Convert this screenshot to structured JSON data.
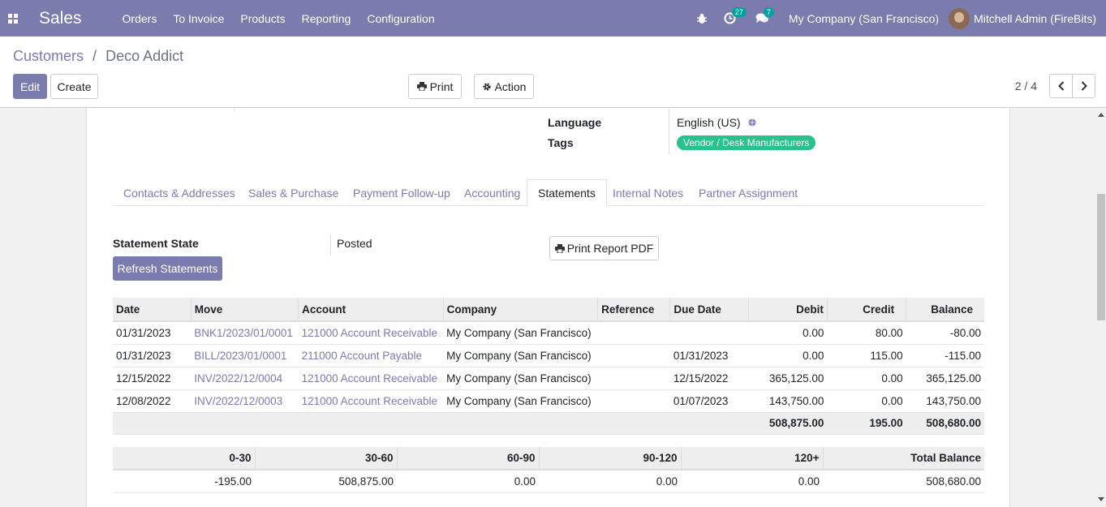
{
  "app": {
    "name": "Sales"
  },
  "nav": {
    "menu": [
      "Orders",
      "To Invoice",
      "Products",
      "Reporting",
      "Configuration"
    ],
    "activity_count": "27",
    "message_count": "7",
    "company": "My Company (San Francisco)",
    "user": "Mitchell Admin (FireBits)"
  },
  "breadcrumb": {
    "parent": "Customers",
    "separator": "/",
    "current": "Deco Addict"
  },
  "toolbar": {
    "edit": "Edit",
    "create": "Create",
    "print": "Print",
    "action": "Action"
  },
  "pager": {
    "value": "2 / 4"
  },
  "form": {
    "language_label": "Language",
    "language_value": "English (US)",
    "tags_label": "Tags",
    "tag": "Vendor / Desk Manufacturers"
  },
  "tabs": [
    "Contacts & Addresses",
    "Sales & Purchase",
    "Payment Follow-up",
    "Accounting",
    "Statements",
    "Internal Notes",
    "Partner Assignment"
  ],
  "statements": {
    "state_label": "Statement State",
    "state_value": "Posted",
    "refresh": "Refresh Statements",
    "print_pdf": "Print Report PDF",
    "headers": [
      "Date",
      "Move",
      "Account",
      "Company",
      "Reference",
      "Due Date",
      "Debit",
      "Credit",
      "Balance"
    ],
    "rows": [
      {
        "date": "01/31/2023",
        "move": "BNK1/2023/01/0001",
        "account": "121000 Account Receivable",
        "company": "My Company (San Francisco)",
        "reference": "",
        "due": "",
        "debit": "0.00",
        "credit": "80.00",
        "balance": "-80.00"
      },
      {
        "date": "01/31/2023",
        "move": "BILL/2023/01/0001",
        "account": "211000 Account Payable",
        "company": "My Company (San Francisco)",
        "reference": "",
        "due": "01/31/2023",
        "debit": "0.00",
        "credit": "115.00",
        "balance": "-115.00"
      },
      {
        "date": "12/15/2022",
        "move": "INV/2022/12/0004",
        "account": "121000 Account Receivable",
        "company": "My Company (San Francisco)",
        "reference": "",
        "due": "12/15/2022",
        "debit": "365,125.00",
        "credit": "0.00",
        "balance": "365,125.00"
      },
      {
        "date": "12/08/2022",
        "move": "INV/2022/12/0003",
        "account": "121000 Account Receivable",
        "company": "My Company (San Francisco)",
        "reference": "",
        "due": "01/07/2023",
        "debit": "143,750.00",
        "credit": "0.00",
        "balance": "143,750.00"
      }
    ],
    "totals": {
      "debit": "508,875.00",
      "credit": "195.00",
      "balance": "508,680.00"
    }
  },
  "aging": {
    "headers": [
      "0-30",
      "30-60",
      "60-90",
      "90-120",
      "120+",
      "Total Balance"
    ],
    "values": [
      "-195.00",
      "508,875.00",
      "0.00",
      "0.00",
      "0.00",
      "508,680.00"
    ]
  }
}
